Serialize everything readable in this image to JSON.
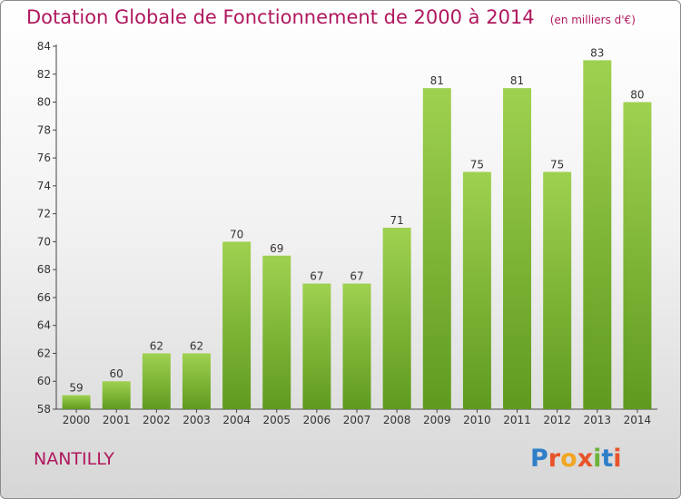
{
  "title": "Dotation Globale de Fonctionnement de 2000 à 2014",
  "unit": "(en milliers d'€)",
  "commune": "NANTILLY",
  "logo": {
    "text": "Proxiti",
    "colors": [
      "#2e7fc8",
      "#e8542a",
      "#f2a623",
      "#e8542a",
      "#6bb33a",
      "#2e7fc8",
      "#e8542a"
    ]
  },
  "colors": {
    "bar_light": "#9fd150",
    "bar_dark": "#5f9a1f",
    "title": "#b0175e"
  },
  "chart_data": {
    "type": "bar",
    "title": "Dotation Globale de Fonctionnement de 2000 à 2014",
    "categories": [
      "2000",
      "2001",
      "2002",
      "2003",
      "2004",
      "2005",
      "2006",
      "2007",
      "2008",
      "2009",
      "2010",
      "2011",
      "2012",
      "2013",
      "2014"
    ],
    "values": [
      59,
      60,
      62,
      62,
      70,
      69,
      67,
      67,
      71,
      81,
      75,
      81,
      75,
      83,
      80
    ],
    "data_labels": [
      "59",
      "60",
      "62",
      "62",
      "70",
      "69",
      "67",
      "67",
      "71",
      "81",
      "75",
      "81",
      "75",
      "83",
      "80"
    ],
    "xlabel": "",
    "ylabel": "",
    "ylim": [
      58,
      84
    ],
    "yticks": [
      "58",
      "60",
      "62",
      "64",
      "66",
      "68",
      "70",
      "72",
      "74",
      "76",
      "78",
      "80",
      "82",
      "84"
    ],
    "grid": false,
    "legend": "none"
  }
}
